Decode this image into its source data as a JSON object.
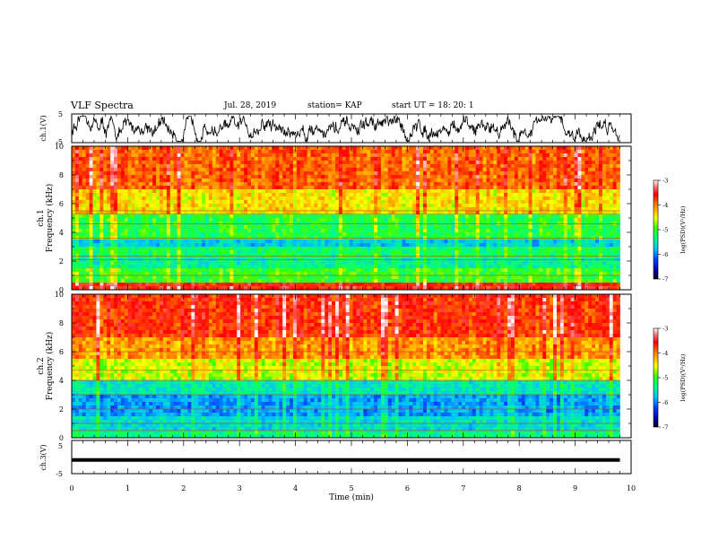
{
  "header": {
    "title": "VLF Spectra",
    "date": "Jul. 28, 2019",
    "station": "station= KAP",
    "start_time": "start UT =  18: 20: 1"
  },
  "colors": {
    "spectrogram_ramp": [
      "#000080",
      "#0000ff",
      "#0080ff",
      "#00d0ff",
      "#00ff80",
      "#00ff00",
      "#80ff00",
      "#ffff00",
      "#ff8000",
      "#ff0000",
      "#ff4040",
      "#ffc0c0",
      "#ffffff"
    ],
    "waveform": "#000000",
    "axis": "#000000"
  },
  "chart_data": [
    {
      "type": "line",
      "id": "ch1",
      "ylabel": "ch.1(V)",
      "ylim": [
        -5,
        5
      ],
      "yticks": [
        "5",
        "-5"
      ],
      "xlim": [
        0,
        10
      ],
      "series": [
        {
          "description": "dense noisy voltage waveform oscillating roughly between -4 and 3 V across full 0-9.8 min"
        }
      ]
    },
    {
      "type": "heatmap",
      "id": "ch1-spectrogram",
      "ylabel": "ch.1\nFrequency (kHz)",
      "ylim": [
        0,
        10
      ],
      "yticks": [
        "0",
        "2",
        "4",
        "6",
        "8",
        "10"
      ],
      "xlim": [
        0,
        9.8
      ],
      "colorbar": {
        "label": "log(PSD)(V²/Hz)",
        "range": [
          -7,
          -3
        ],
        "ticks": [
          "-3",
          "-4",
          "-5",
          "-6",
          "-7"
        ]
      },
      "bands_log_psd": [
        {
          "f_khz": [
            0,
            0.5
          ],
          "level": -3.6
        },
        {
          "f_khz": [
            0.5,
            1.6
          ],
          "level": -5.0
        },
        {
          "f_khz": [
            1.6,
            2.3
          ],
          "level": -5.4
        },
        {
          "f_khz": [
            2.3,
            3.0
          ],
          "level": -5.2
        },
        {
          "f_khz": [
            3.0,
            3.6
          ],
          "level": -5.7
        },
        {
          "f_khz": [
            3.6,
            5.2
          ],
          "level": -5.1
        },
        {
          "f_khz": [
            5.2,
            7.0
          ],
          "level": -4.4
        },
        {
          "f_khz": [
            7.0,
            10.0
          ],
          "level": -3.9
        }
      ],
      "lines_khz": [
        0.3,
        1.0,
        2.1,
        2.35,
        3.6,
        4.6,
        5.3,
        5.5
      ]
    },
    {
      "type": "heatmap",
      "id": "ch2-spectrogram",
      "ylabel": "ch.2\nFrequency (kHz)",
      "ylim": [
        0,
        10
      ],
      "yticks": [
        "0",
        "2",
        "4",
        "6",
        "8",
        "10"
      ],
      "xlim": [
        0,
        9.8
      ],
      "colorbar": {
        "label": "log(PSD)(V²/Hz)",
        "range": [
          -7,
          -3
        ],
        "ticks": [
          "-3",
          "-4",
          "-5",
          "-6",
          "-7"
        ]
      },
      "bands_log_psd": [
        {
          "f_khz": [
            0,
            0.6
          ],
          "level": -5.3
        },
        {
          "f_khz": [
            0.6,
            1.6
          ],
          "level": -5.6
        },
        {
          "f_khz": [
            1.6,
            3.0
          ],
          "level": -5.9
        },
        {
          "f_khz": [
            3.0,
            4.0
          ],
          "level": -5.5
        },
        {
          "f_khz": [
            4.0,
            5.5
          ],
          "level": -4.6
        },
        {
          "f_khz": [
            5.5,
            7.0
          ],
          "level": -4.1
        },
        {
          "f_khz": [
            7.0,
            10.0
          ],
          "level": -3.7
        }
      ],
      "lines_khz": [
        0.5,
        1.0,
        2.0,
        3.0,
        4.0,
        4.7,
        6.0
      ]
    },
    {
      "type": "line",
      "id": "ch3",
      "ylabel": "ch.3(V)",
      "ylim": [
        -5,
        5
      ],
      "yticks": [
        "5",
        "-5"
      ],
      "xlim": [
        0,
        10
      ],
      "xlabel": "Time (min)",
      "xticks": [
        "0",
        "1",
        "2",
        "3",
        "4",
        "5",
        "6",
        "7",
        "8",
        "9",
        "10"
      ],
      "series": [
        {
          "values_flat": -1.2,
          "x_range": [
            0,
            9.8
          ]
        }
      ]
    }
  ]
}
